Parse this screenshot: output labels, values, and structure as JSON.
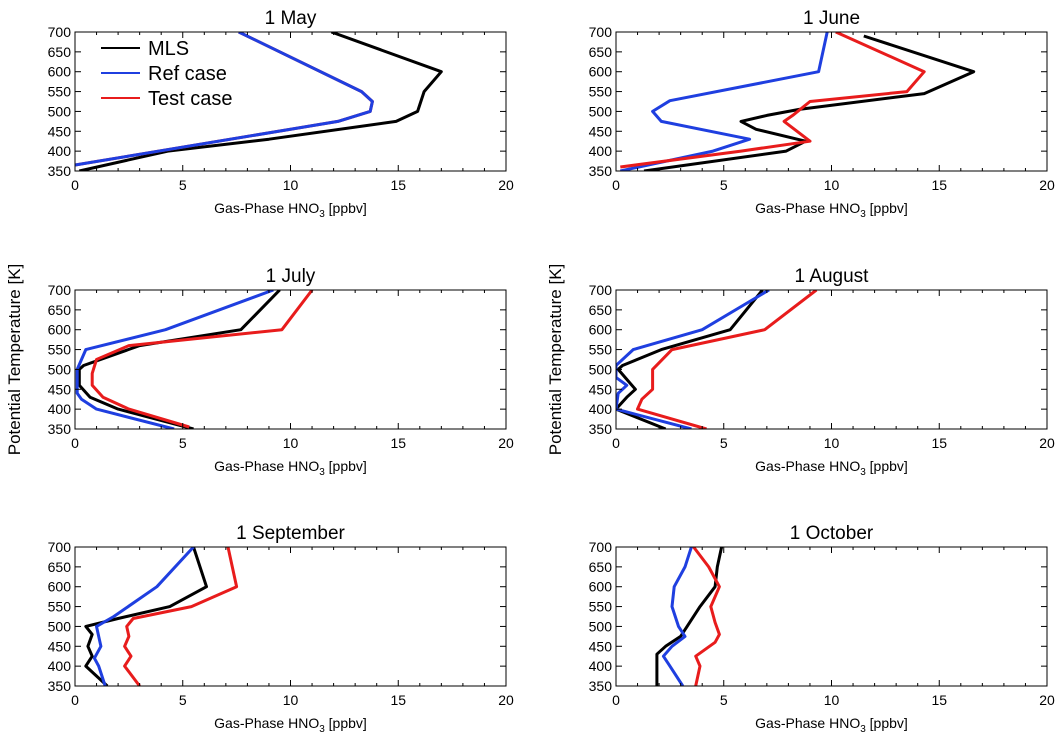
{
  "chart_data": {
    "type": "line",
    "shared": {
      "xlabel_main": "Gas-Phase HNO",
      "xlabel_sub": "3",
      "xlabel_unit": " [ppbv]",
      "ylabel": "Potential Temperature [K]",
      "xlim": [
        0,
        20
      ],
      "ylim": [
        350,
        700
      ],
      "xticks": [
        0,
        5,
        10,
        15,
        20
      ],
      "yticks": [
        350,
        400,
        450,
        500,
        550,
        600,
        650,
        700
      ],
      "legend": {
        "placement": "top-left of first panel",
        "entries": [
          {
            "name": "MLS",
            "color": "#000000"
          },
          {
            "name": "Ref case",
            "color": "#1f3fe0"
          },
          {
            "name": "Test case",
            "color": "#e81c1c"
          }
        ]
      }
    },
    "panels": [
      {
        "title": "1 May",
        "series": [
          {
            "name": "MLS",
            "color": "#000000",
            "points": [
              [
                11.9,
                700
              ],
              [
                17.0,
                600
              ],
              [
                16.2,
                550
              ],
              [
                15.9,
                500
              ],
              [
                14.9,
                475
              ],
              [
                9.0,
                430
              ],
              [
                4.3,
                400
              ],
              [
                0.2,
                350
              ]
            ]
          },
          {
            "name": "Test case",
            "color": "#e81c1c",
            "points": [
              [
                7.6,
                700
              ],
              [
                13.3,
                550
              ],
              [
                13.8,
                525
              ],
              [
                13.7,
                500
              ],
              [
                12.2,
                475
              ],
              [
                0,
                365
              ]
            ]
          },
          {
            "name": "Ref case",
            "color": "#1f3fe0",
            "points": [
              [
                7.6,
                700
              ],
              [
                13.3,
                550
              ],
              [
                13.8,
                525
              ],
              [
                13.7,
                500
              ],
              [
                12.2,
                475
              ],
              [
                0,
                365
              ]
            ]
          }
        ]
      },
      {
        "title": "1 June",
        "series": [
          {
            "name": "MLS",
            "color": "#000000",
            "points": [
              [
                11.5,
                690
              ],
              [
                16.6,
                600
              ],
              [
                14.3,
                545
              ],
              [
                8.5,
                505
              ],
              [
                7.0,
                490
              ],
              [
                5.8,
                475
              ],
              [
                6.5,
                455
              ],
              [
                8.8,
                425
              ],
              [
                7.9,
                400
              ],
              [
                1.3,
                350
              ]
            ]
          },
          {
            "name": "Ref case",
            "color": "#1f3fe0",
            "points": [
              [
                9.8,
                700
              ],
              [
                9.4,
                600
              ],
              [
                2.5,
                527
              ],
              [
                1.7,
                500
              ],
              [
                2.1,
                475
              ],
              [
                6.2,
                430
              ],
              [
                4.5,
                400
              ],
              [
                0.2,
                350
              ]
            ]
          },
          {
            "name": "Test case",
            "color": "#e81c1c",
            "points": [
              [
                10.2,
                700
              ],
              [
                14.3,
                600
              ],
              [
                13.5,
                550
              ],
              [
                9.0,
                525
              ],
              [
                8.2,
                490
              ],
              [
                7.8,
                475
              ],
              [
                9.0,
                425
              ],
              [
                5.8,
                400
              ],
              [
                0.2,
                360
              ]
            ]
          }
        ]
      },
      {
        "title": "1 July",
        "series": [
          {
            "name": "MLS",
            "color": "#000000",
            "points": [
              [
                9.5,
                700
              ],
              [
                7.7,
                600
              ],
              [
                3.0,
                560
              ],
              [
                0.4,
                510
              ],
              [
                0.2,
                500
              ],
              [
                0.2,
                460
              ],
              [
                0.7,
                430
              ],
              [
                2.0,
                400
              ],
              [
                5.5,
                350
              ]
            ]
          },
          {
            "name": "Ref case",
            "color": "#1f3fe0",
            "points": [
              [
                9.2,
                700
              ],
              [
                4.2,
                600
              ],
              [
                0.5,
                550
              ],
              [
                0.1,
                500
              ],
              [
                0.1,
                440
              ],
              [
                0.3,
                425
              ],
              [
                1.0,
                400
              ],
              [
                4.6,
                350
              ]
            ]
          },
          {
            "name": "Test case",
            "color": "#e81c1c",
            "points": [
              [
                11.0,
                700
              ],
              [
                9.6,
                600
              ],
              [
                2.5,
                560
              ],
              [
                1.0,
                525
              ],
              [
                0.8,
                490
              ],
              [
                0.8,
                460
              ],
              [
                1.3,
                430
              ],
              [
                2.5,
                400
              ],
              [
                5.3,
                355
              ]
            ]
          }
        ]
      },
      {
        "title": "1 August",
        "series": [
          {
            "name": "MLS",
            "color": "#000000",
            "points": [
              [
                6.8,
                700
              ],
              [
                5.3,
                600
              ],
              [
                2.1,
                550
              ],
              [
                0.3,
                510
              ],
              [
                0.1,
                500
              ],
              [
                0.5,
                475
              ],
              [
                0.9,
                450
              ],
              [
                0.5,
                430
              ],
              [
                0.0,
                400
              ],
              [
                2.3,
                350
              ]
            ]
          },
          {
            "name": "Ref case",
            "color": "#1f3fe0",
            "points": [
              [
                7.1,
                700
              ],
              [
                4.0,
                600
              ],
              [
                0.8,
                550
              ],
              [
                0,
                510
              ],
              [
                0,
                480
              ],
              [
                0.5,
                460
              ],
              [
                0.1,
                440
              ],
              [
                0,
                400
              ],
              [
                3.5,
                350
              ]
            ]
          },
          {
            "name": "Test case",
            "color": "#e81c1c",
            "points": [
              [
                9.3,
                700
              ],
              [
                6.9,
                600
              ],
              [
                2.6,
                550
              ],
              [
                1.7,
                500
              ],
              [
                1.7,
                450
              ],
              [
                1.2,
                425
              ],
              [
                1.0,
                400
              ],
              [
                4.2,
                350
              ]
            ]
          }
        ]
      },
      {
        "title": "1 September",
        "series": [
          {
            "name": "MLS",
            "color": "#000000",
            "points": [
              [
                5.5,
                700
              ],
              [
                6.1,
                600
              ],
              [
                4.4,
                550
              ],
              [
                2.0,
                520
              ],
              [
                0.5,
                500
              ],
              [
                0.8,
                480
              ],
              [
                0.6,
                450
              ],
              [
                0.8,
                425
              ],
              [
                0.5,
                400
              ],
              [
                1.5,
                350
              ]
            ]
          },
          {
            "name": "Ref case",
            "color": "#1f3fe0",
            "points": [
              [
                5.5,
                700
              ],
              [
                3.8,
                600
              ],
              [
                1.8,
                525
              ],
              [
                1.0,
                500
              ],
              [
                1.1,
                475
              ],
              [
                1.2,
                450
              ],
              [
                0.9,
                420
              ],
              [
                1.1,
                400
              ],
              [
                1.4,
                350
              ]
            ]
          },
          {
            "name": "Test case",
            "color": "#e81c1c",
            "points": [
              [
                7.1,
                700
              ],
              [
                7.5,
                600
              ],
              [
                5.4,
                550
              ],
              [
                2.7,
                520
              ],
              [
                2.4,
                500
              ],
              [
                2.5,
                475
              ],
              [
                2.3,
                450
              ],
              [
                2.6,
                425
              ],
              [
                2.3,
                400
              ],
              [
                3.0,
                350
              ]
            ]
          }
        ]
      },
      {
        "title": "1 October",
        "series": [
          {
            "name": "MLS",
            "color": "#000000",
            "points": [
              [
                4.9,
                700
              ],
              [
                4.7,
                650
              ],
              [
                4.6,
                600
              ],
              [
                3.9,
                550
              ],
              [
                3.3,
                500
              ],
              [
                3.0,
                475
              ],
              [
                2.3,
                450
              ],
              [
                1.9,
                430
              ],
              [
                1.9,
                400
              ],
              [
                1.9,
                350
              ]
            ]
          },
          {
            "name": "Ref case",
            "color": "#1f3fe0",
            "points": [
              [
                3.5,
                700
              ],
              [
                3.2,
                650
              ],
              [
                2.7,
                600
              ],
              [
                2.6,
                550
              ],
              [
                2.9,
                500
              ],
              [
                3.2,
                475
              ],
              [
                2.6,
                450
              ],
              [
                2.2,
                425
              ],
              [
                2.5,
                400
              ],
              [
                3.1,
                350
              ]
            ]
          },
          {
            "name": "Test case",
            "color": "#e81c1c",
            "points": [
              [
                3.6,
                700
              ],
              [
                4.3,
                650
              ],
              [
                4.8,
                600
              ],
              [
                4.4,
                550
              ],
              [
                4.6,
                510
              ],
              [
                4.8,
                480
              ],
              [
                4.6,
                460
              ],
              [
                3.7,
                425
              ],
              [
                3.9,
                400
              ],
              [
                3.7,
                350
              ]
            ]
          }
        ]
      }
    ]
  }
}
